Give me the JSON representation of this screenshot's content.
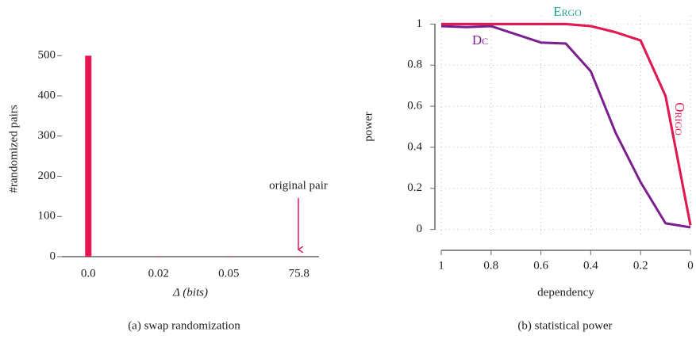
{
  "chart_data": [
    {
      "type": "bar",
      "caption": "(a) swap randomization",
      "ylabel": "#randomized pairs",
      "xlabel": "Δ (bits)",
      "categories": [
        "0.0",
        "0.02",
        "0.05",
        "75.8"
      ],
      "values": [
        500,
        1,
        1,
        1
      ],
      "color": "#e8174f",
      "ylim": [
        0,
        540
      ],
      "yticks": [
        0,
        100,
        200,
        300,
        400,
        500
      ],
      "annotation": "original pair"
    },
    {
      "type": "line",
      "caption": "(b) statistical power",
      "ylabel": "power",
      "xlabel": "dependency",
      "x": [
        1,
        0.9,
        0.8,
        0.7,
        0.6,
        0.5,
        0.4,
        0.3,
        0.2,
        0.1,
        0
      ],
      "xlim": [
        1,
        0
      ],
      "xticks": [
        1,
        0.8,
        0.6,
        0.4,
        0.2,
        0
      ],
      "ylim": [
        -0.04,
        1.04
      ],
      "yticks": [
        0,
        0.2,
        0.4,
        0.6,
        0.8,
        1
      ],
      "grid": true,
      "series": [
        {
          "name": "Ergo",
          "color": "#1aa58a",
          "values": [
            1,
            1,
            1,
            1,
            1,
            1,
            0.99,
            0.96,
            0.92,
            0.65,
            0.02
          ]
        },
        {
          "name": "Dc",
          "color": "#7b1f8f",
          "values": [
            0.99,
            0.985,
            0.99,
            0.95,
            0.91,
            0.905,
            0.77,
            0.47,
            0.23,
            0.03,
            0.01
          ]
        },
        {
          "name": "Origo",
          "color": "#e8174f",
          "values": [
            1,
            1,
            1,
            1,
            1,
            1,
            0.99,
            0.96,
            0.92,
            0.65,
            0.02
          ]
        }
      ]
    }
  ]
}
